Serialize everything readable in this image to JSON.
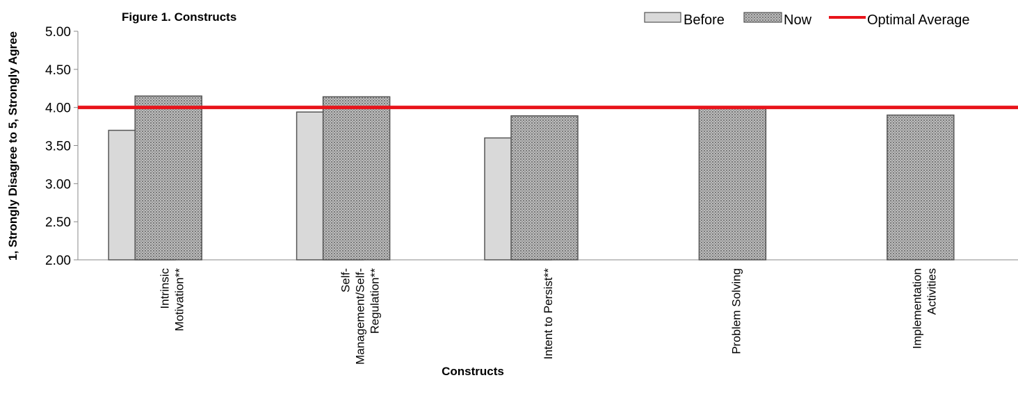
{
  "chart_data": {
    "type": "bar",
    "title": "Figure 1. Constructs",
    "xlabel": "Constructs",
    "ylabel": "1, Strongly Disagree to 5, Strongly Agree",
    "ylim": [
      2.0,
      5.0
    ],
    "yticks": [
      "2.00",
      "2.50",
      "3.00",
      "3.50",
      "4.00",
      "4.50",
      "5.00"
    ],
    "grid": false,
    "legend_position": "top-right",
    "categories": [
      [
        "Intrinsic",
        "Motivation**"
      ],
      [
        "Self-",
        "Management/Self-",
        "Regulation**"
      ],
      [
        "Intent to  Persist**"
      ],
      [
        "Problem Solving"
      ],
      [
        "Implementation",
        "Activities"
      ]
    ],
    "series": [
      {
        "name": "Before",
        "color": "#d9d9d9",
        "values": [
          3.7,
          3.94,
          3.6,
          null,
          null
        ]
      },
      {
        "name": "Now",
        "color": "#a6a6a6",
        "pattern": "crosshatch",
        "values": [
          4.15,
          4.14,
          3.89,
          4.0,
          3.9
        ]
      }
    ],
    "reference_line": {
      "name": "Optimal Average",
      "value": 4.0,
      "color": "#e8141b"
    }
  }
}
